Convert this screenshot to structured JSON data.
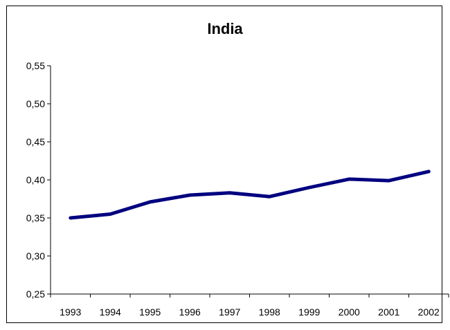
{
  "chart_data": {
    "type": "line",
    "title": "India",
    "xlabel": "",
    "ylabel": "",
    "categories": [
      "1993",
      "1994",
      "1995",
      "1996",
      "1997",
      "1998",
      "1999",
      "2000",
      "2001",
      "2002"
    ],
    "series": [
      {
        "values": [
          0.35,
          0.355,
          0.371,
          0.38,
          0.383,
          0.378,
          0.39,
          0.401,
          0.399,
          0.411
        ]
      }
    ],
    "ylim": [
      0.25,
      0.55
    ],
    "yticks": [
      "0,25",
      "0,30",
      "0,35",
      "0,40",
      "0,45",
      "0,50",
      "0,55"
    ],
    "ytick_values": [
      0.25,
      0.3,
      0.35,
      0.4,
      0.45,
      0.5,
      0.55
    ],
    "grid": false,
    "legend": "none",
    "colors": {
      "line": "#000080",
      "axis": "#000000",
      "background": "#ffffff"
    }
  }
}
